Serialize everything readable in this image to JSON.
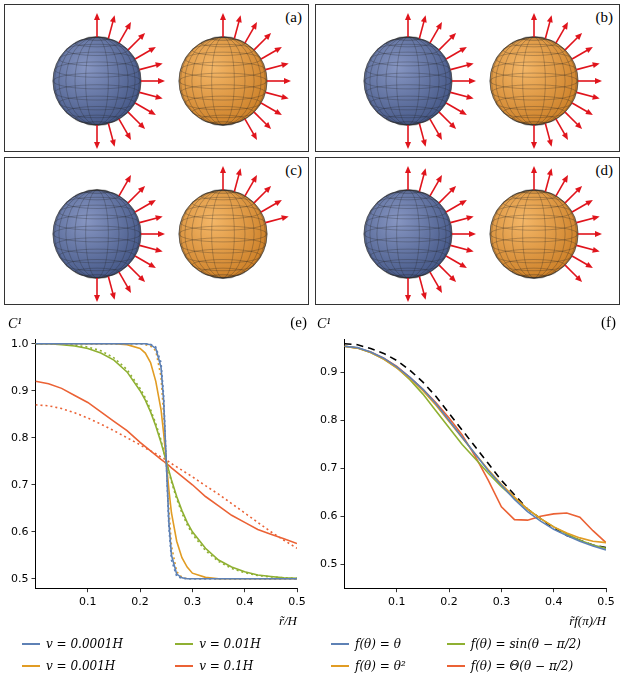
{
  "panels": [
    {
      "letter": "(a)"
    },
    {
      "letter": "(b)"
    },
    {
      "letter": "(c)"
    },
    {
      "letter": "(d)"
    }
  ],
  "chart_data": [
    {
      "type": "line",
      "letter": "(e)",
      "y_label": "C¹",
      "x_label": "r̃/H",
      "x": [
        0,
        0.025,
        0.05,
        0.075,
        0.1,
        0.125,
        0.15,
        0.175,
        0.2,
        0.21,
        0.22,
        0.23,
        0.24,
        0.245,
        0.25,
        0.255,
        0.26,
        0.27,
        0.28,
        0.29,
        0.3,
        0.325,
        0.35,
        0.375,
        0.4,
        0.425,
        0.45,
        0.475,
        0.5
      ],
      "xlim": [
        0,
        0.5
      ],
      "xticks": [
        0.1,
        0.2,
        0.3,
        0.4,
        0.5
      ],
      "ylim": [
        0.48,
        1.01
      ],
      "yticks": [
        0.5,
        0.6,
        0.7,
        0.8,
        0.9,
        {
          "value": 1,
          "label": "1.0"
        }
      ],
      "grid": false,
      "legend": "bottom",
      "series": [
        {
          "name": "v = 0.0001H",
          "color": "#5e81b5",
          "line_style": "solid",
          "values": [
            1,
            1,
            1,
            1,
            1,
            1,
            1,
            1,
            1,
            1,
            0.998,
            0.99,
            0.95,
            0.88,
            0.75,
            0.62,
            0.55,
            0.51,
            0.502,
            0.5,
            0.5,
            0.5,
            0.5,
            0.5,
            0.5,
            0.5,
            0.5,
            0.5,
            0.5
          ]
        },
        {
          "color": "#5e81b5",
          "line_style": "dotted",
          "values": [
            1,
            1,
            1,
            1,
            1,
            1,
            1,
            1,
            1,
            1,
            0.999,
            0.993,
            0.96,
            0.89,
            0.75,
            0.61,
            0.54,
            0.505,
            0.501,
            0.5,
            0.5,
            0.5,
            0.5,
            0.5,
            0.5,
            0.5,
            0.5,
            0.5,
            0.5
          ]
        },
        {
          "name": "v = 0.001H",
          "color": "#e19c24",
          "line_style": "solid",
          "values": [
            1,
            1,
            1,
            1,
            1,
            1,
            1,
            0.998,
            0.99,
            0.98,
            0.96,
            0.92,
            0.86,
            0.81,
            0.75,
            0.69,
            0.64,
            0.58,
            0.545,
            0.525,
            0.512,
            0.503,
            0.5,
            0.5,
            0.5,
            0.5,
            0.5,
            0.5,
            0.5
          ]
        },
        {
          "color": "#e19c24",
          "line_style": "dotted",
          "values": [
            1,
            1,
            1,
            1,
            1,
            1,
            1,
            1,
            1,
            0.998,
            0.995,
            0.985,
            0.93,
            0.85,
            0.75,
            0.65,
            0.57,
            0.515,
            0.503,
            0.5,
            0.5,
            0.5,
            0.5,
            0.5,
            0.5,
            0.5,
            0.5,
            0.5,
            0.5
          ]
        },
        {
          "name": "v = 0.01H",
          "color": "#8fb032",
          "line_style": "solid",
          "values": [
            1,
            1,
            0.998,
            0.995,
            0.99,
            0.98,
            0.965,
            0.94,
            0.9,
            0.88,
            0.855,
            0.825,
            0.79,
            0.77,
            0.75,
            0.73,
            0.71,
            0.675,
            0.645,
            0.62,
            0.6,
            0.565,
            0.54,
            0.525,
            0.515,
            0.508,
            0.505,
            0.502,
            0.501
          ]
        },
        {
          "color": "#8fb032",
          "line_style": "dotted",
          "values": [
            1,
            1,
            0.999,
            0.997,
            0.993,
            0.985,
            0.97,
            0.945,
            0.905,
            0.885,
            0.86,
            0.83,
            0.795,
            0.772,
            0.75,
            0.728,
            0.706,
            0.67,
            0.64,
            0.615,
            0.595,
            0.56,
            0.537,
            0.522,
            0.513,
            0.507,
            0.504,
            0.502,
            0.501
          ]
        },
        {
          "name": "v = 0.1H",
          "color": "#eb6235",
          "line_style": "solid",
          "values": [
            0.92,
            0.915,
            0.905,
            0.89,
            0.875,
            0.855,
            0.835,
            0.815,
            0.79,
            0.781,
            0.772,
            0.763,
            0.754,
            0.75,
            0.745,
            0.741,
            0.736,
            0.727,
            0.718,
            0.709,
            0.7,
            0.675,
            0.655,
            0.635,
            0.62,
            0.605,
            0.595,
            0.585,
            0.575
          ]
        },
        {
          "color": "#eb6235",
          "line_style": "dotted",
          "values": [
            0.87,
            0.868,
            0.862,
            0.853,
            0.842,
            0.829,
            0.815,
            0.8,
            0.785,
            0.778,
            0.772,
            0.766,
            0.759,
            0.756,
            0.752,
            0.749,
            0.745,
            0.738,
            0.731,
            0.724,
            0.717,
            0.698,
            0.68,
            0.66,
            0.64,
            0.62,
            0.6,
            0.582,
            0.565
          ]
        }
      ]
    },
    {
      "type": "line",
      "letter": "(f)",
      "y_label": "C¹",
      "x_label": "r̃f(π)/H",
      "x": [
        0,
        0.025,
        0.05,
        0.075,
        0.1,
        0.125,
        0.15,
        0.175,
        0.2,
        0.225,
        0.25,
        0.275,
        0.3,
        0.325,
        0.35,
        0.375,
        0.4,
        0.425,
        0.45,
        0.475,
        0.5
      ],
      "xlim": [
        0,
        0.5
      ],
      "xticks": [
        0.1,
        0.2,
        0.3,
        0.4,
        0.5
      ],
      "ylim": [
        0.45,
        0.97
      ],
      "yticks": [
        0.5,
        0.6,
        0.7,
        0.8,
        0.9
      ],
      "grid": false,
      "legend": "bottom",
      "series": [
        {
          "name": "f(θ) = θ",
          "color": "#5e81b5",
          "line_style": "solid",
          "values": [
            0.955,
            0.952,
            0.943,
            0.93,
            0.912,
            0.89,
            0.865,
            0.835,
            0.8,
            0.765,
            0.73,
            0.695,
            0.665,
            0.635,
            0.61,
            0.59,
            0.573,
            0.56,
            0.548,
            0.538,
            0.53
          ]
        },
        {
          "name": "f(θ) = θ²",
          "color": "#e19c24",
          "line_style": "solid",
          "values": [
            0.955,
            0.951,
            0.942,
            0.928,
            0.91,
            0.888,
            0.862,
            0.832,
            0.798,
            0.764,
            0.73,
            0.697,
            0.667,
            0.64,
            0.615,
            0.595,
            0.578,
            0.565,
            0.555,
            0.548,
            0.545
          ]
        },
        {
          "name": "f(θ) = sin(θ − π/2)",
          "color": "#8fb032",
          "line_style": "solid",
          "values": [
            0.955,
            0.951,
            0.942,
            0.928,
            0.91,
            0.885,
            0.855,
            0.82,
            0.785,
            0.75,
            0.72,
            0.69,
            0.662,
            0.638,
            0.615,
            0.595,
            0.578,
            0.563,
            0.55,
            0.54,
            0.533
          ]
        },
        {
          "name": "f(θ) = Θ(θ − π/2)",
          "color": "#eb6235",
          "line_style": "solid",
          "values": [
            0.955,
            0.951,
            0.943,
            0.93,
            0.913,
            0.89,
            0.865,
            0.837,
            0.805,
            0.77,
            0.725,
            0.675,
            0.62,
            0.593,
            0.592,
            0.6,
            0.605,
            0.607,
            0.598,
            0.57,
            0.545
          ]
        },
        {
          "color": "#000000",
          "line_style": "dashed",
          "values": [
            0.96,
            0.958,
            0.95,
            0.94,
            0.925,
            0.905,
            0.88,
            0.85,
            0.815,
            0.78,
            0.745,
            0.71,
            0.675,
            0.645,
            0.615,
            0.595,
            0.575,
            0.56,
            0.55,
            0.54,
            0.535
          ]
        }
      ]
    }
  ]
}
